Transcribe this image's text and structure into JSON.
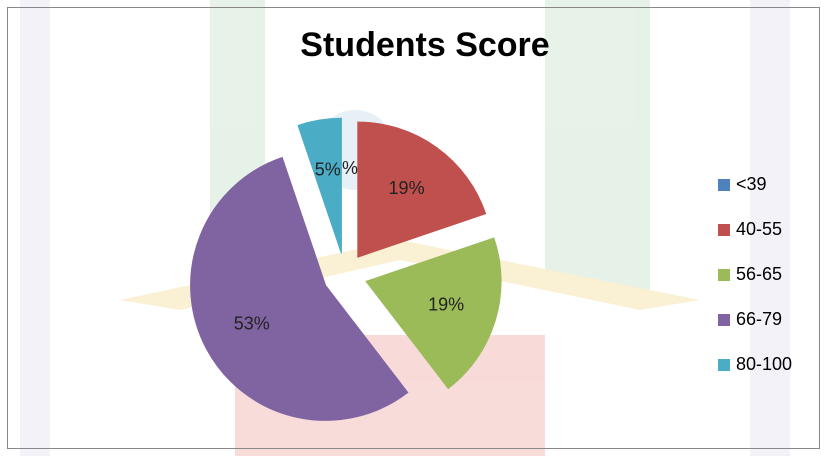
{
  "chart_data": {
    "type": "pie",
    "title": "Students Score",
    "categories": [
      "<39",
      "40-55",
      "56-65",
      "66-79",
      "80-100"
    ],
    "values": [
      0,
      19,
      19,
      53,
      5
    ],
    "value_labels": [
      "0%",
      "19%",
      "19%",
      "53%",
      "5%"
    ],
    "colors": [
      "#4f81bd",
      "#c0504d",
      "#9bbb59",
      "#8064a2",
      "#4bacc6"
    ],
    "legend": "right"
  }
}
